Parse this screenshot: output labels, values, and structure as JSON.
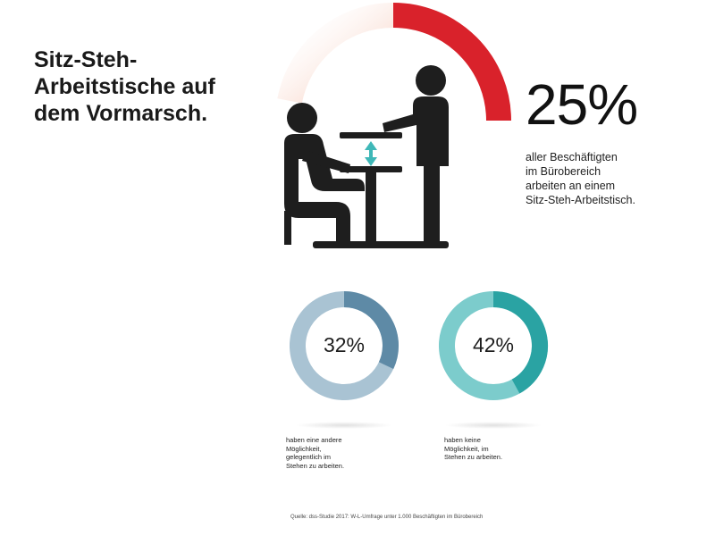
{
  "title_lines": [
    "Sitz-Steh-",
    "Arbeitstische auf",
    "dem Vormarsch."
  ],
  "main_stat": {
    "value": "25%",
    "desc_lines": [
      "aller Beschäftigten",
      "im Bürobereich",
      "arbeiten an einem",
      "Sitz-Steh-Arbeitstisch."
    ]
  },
  "stats": [
    {
      "value": "32%",
      "desc_lines": [
        "haben eine andere",
        "Möglichkeit,",
        "gelegentlich im",
        "Stehen zu arbeiten."
      ]
    },
    {
      "value": "42%",
      "desc_lines": [
        "haben keine",
        "Möglichkeit, im",
        "Stehen zu arbeiten."
      ]
    }
  ],
  "source": "Quelle: dss-Studie 2017: W-L-Umfrage unter 1.000 Beschäftigten im Bürobereich",
  "colors": {
    "main_ring": "#d9222b",
    "main_ring_fade": "#f2b29a",
    "ring1": "#5e8aa6",
    "ring1_light": "#a9c3d3",
    "ring2": "#2aa3a3",
    "ring2_light": "#7ccccc",
    "figure": "#1e1e1e",
    "arrow": "#3fb8b8"
  },
  "icons": [
    "sit-stand-desk-people-icon",
    "height-adjust-arrow-icon"
  ],
  "chart_data": [
    {
      "type": "pie",
      "title": "",
      "categories": [
        "",
        ""
      ],
      "values": [
        25,
        75
      ],
      "center_label": "25%"
    },
    {
      "type": "pie",
      "title": "",
      "categories": [
        "",
        ""
      ],
      "values": [
        32,
        68
      ],
      "center_label": "32%"
    },
    {
      "type": "pie",
      "title": "",
      "categories": [
        "",
        ""
      ],
      "values": [
        42,
        58
      ],
      "center_label": "42%"
    }
  ]
}
